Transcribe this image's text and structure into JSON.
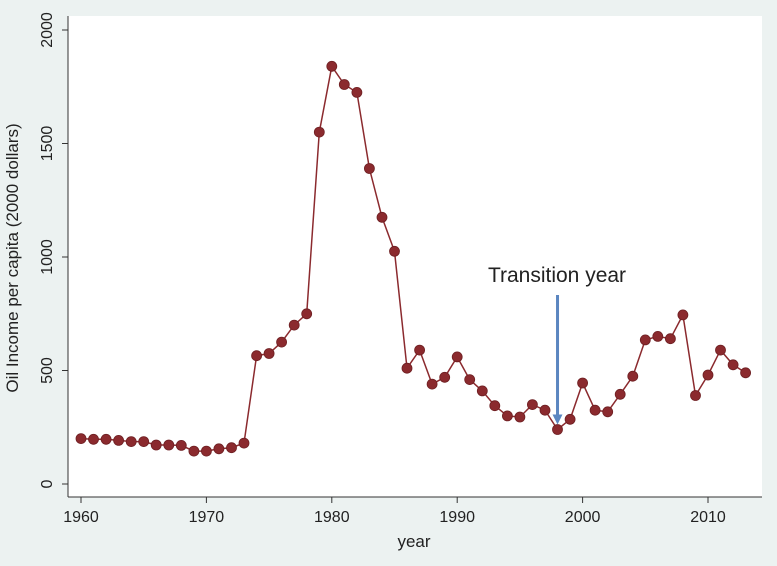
{
  "chart_data": {
    "type": "line",
    "xlabel": "year",
    "ylabel": "Oil Income per capita (2000 dollars)",
    "xlim": [
      1960,
      2013
    ],
    "ylim": [
      0,
      2000
    ],
    "xticks": [
      1960,
      1970,
      1980,
      1990,
      2000,
      2010
    ],
    "yticks": [
      0,
      500,
      1000,
      1500,
      2000
    ],
    "grid": false,
    "series": [
      {
        "color": "#8b2a2e",
        "x": [
          1960,
          1961,
          1962,
          1963,
          1964,
          1965,
          1966,
          1967,
          1968,
          1969,
          1970,
          1971,
          1972,
          1973,
          1974,
          1975,
          1976,
          1977,
          1978,
          1979,
          1980,
          1981,
          1982,
          1983,
          1984,
          1985,
          1986,
          1987,
          1988,
          1989,
          1990,
          1991,
          1992,
          1993,
          1994,
          1995,
          1996,
          1997,
          1998,
          1999,
          2000,
          2001,
          2002,
          2003,
          2004,
          2005,
          2006,
          2007,
          2008,
          2009,
          2010,
          2011,
          2012,
          2013
        ],
        "y": [
          200,
          197,
          197,
          192,
          187,
          187,
          172,
          172,
          170,
          145,
          145,
          155,
          160,
          180,
          565,
          575,
          625,
          700,
          750,
          1550,
          1840,
          1760,
          1725,
          1390,
          1175,
          1025,
          510,
          590,
          440,
          470,
          560,
          460,
          410,
          345,
          300,
          295,
          350,
          325,
          240,
          285,
          445,
          325,
          318,
          395,
          475,
          635,
          650,
          640,
          745,
          390,
          480,
          590,
          525,
          490
        ]
      }
    ],
    "annotations": [
      {
        "text": "Transition year",
        "x": 1998,
        "y": 240,
        "arrow_color": "#5b86c0"
      }
    ]
  }
}
